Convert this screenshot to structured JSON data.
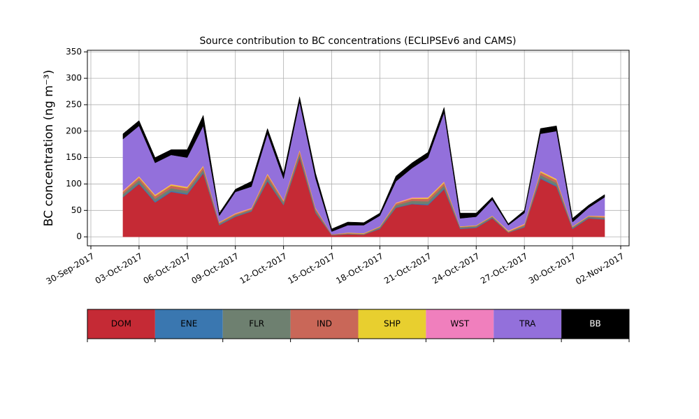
{
  "chart_data": {
    "type": "stacked_area",
    "title": "Source contribution to BC concentrations (ECLIPSEv6 and CAMS)",
    "y_label": "BC concentration (ng m⁻³)",
    "x": [
      "2017-10-02",
      "2017-10-03",
      "2017-10-04",
      "2017-10-05",
      "2017-10-06",
      "2017-10-07",
      "2017-10-08",
      "2017-10-09",
      "2017-10-10",
      "2017-10-11",
      "2017-10-12",
      "2017-10-13",
      "2017-10-14",
      "2017-10-15",
      "2017-10-16",
      "2017-10-17",
      "2017-10-18",
      "2017-10-19",
      "2017-10-20",
      "2017-10-21",
      "2017-10-22",
      "2017-10-23",
      "2017-10-24",
      "2017-10-25",
      "2017-10-26",
      "2017-10-27",
      "2017-10-28",
      "2017-10-29",
      "2017-10-30",
      "2017-10-31",
      "2017-11-01"
    ],
    "series": [
      {
        "name": "DOM",
        "color": "#c52a35",
        "values": [
          75,
          100,
          65,
          85,
          80,
          120,
          22,
          38,
          48,
          105,
          60,
          150,
          45,
          3,
          5,
          4,
          15,
          55,
          62,
          60,
          90,
          15,
          17,
          35,
          8,
          18,
          110,
          95,
          15,
          35,
          33
        ]
      },
      {
        "name": "ENE",
        "color": "#3a77b0",
        "values": [
          1,
          2,
          2,
          2,
          2,
          2,
          1,
          1,
          1,
          2,
          1,
          2,
          1,
          0,
          0,
          0,
          1,
          1,
          1,
          2,
          2,
          1,
          1,
          1,
          0,
          1,
          2,
          2,
          1,
          1,
          1
        ]
      },
      {
        "name": "FLR",
        "color": "#6e8070",
        "values": [
          5,
          5,
          5,
          5,
          5,
          5,
          2,
          2,
          2,
          5,
          4,
          5,
          4,
          1,
          1,
          1,
          2,
          4,
          5,
          5,
          5,
          2,
          2,
          2,
          1,
          2,
          5,
          5,
          2,
          2,
          2
        ]
      },
      {
        "name": "IND",
        "color": "#c96758",
        "values": [
          4,
          5,
          5,
          5,
          5,
          5,
          2,
          2,
          2,
          5,
          3,
          5,
          3,
          1,
          1,
          1,
          1,
          3,
          4,
          5,
          5,
          1,
          1,
          1,
          1,
          2,
          5,
          5,
          1,
          1,
          2
        ]
      },
      {
        "name": "SHP",
        "color": "#e8cf2f",
        "values": [
          1,
          2,
          2,
          2,
          2,
          2,
          1,
          1,
          1,
          2,
          1,
          2,
          1,
          0,
          1,
          1,
          1,
          1,
          1,
          2,
          2,
          1,
          1,
          1,
          1,
          1,
          2,
          2,
          1,
          1,
          1
        ]
      },
      {
        "name": "WST",
        "color": "#f07fbd",
        "values": [
          2,
          1,
          1,
          1,
          1,
          1,
          0,
          1,
          1,
          1,
          1,
          1,
          1,
          0,
          0,
          0,
          0,
          1,
          2,
          1,
          1,
          0,
          0,
          0,
          1,
          1,
          1,
          1,
          0,
          0,
          1
        ]
      },
      {
        "name": "TRA",
        "color": "#9370db",
        "values": [
          97,
          95,
          60,
          55,
          55,
          75,
          12,
          40,
          40,
          75,
          40,
          90,
          55,
          5,
          14,
          15,
          20,
          40,
          55,
          75,
          130,
          15,
          16,
          30,
          10,
          20,
          70,
          90,
          8,
          15,
          35
        ]
      },
      {
        "name": "BB",
        "color": "#000000",
        "values": [
          10,
          10,
          10,
          10,
          15,
          20,
          5,
          5,
          10,
          10,
          10,
          10,
          10,
          5,
          6,
          5,
          5,
          10,
          10,
          10,
          10,
          10,
          7,
          5,
          3,
          5,
          10,
          10,
          7,
          5,
          5
        ]
      }
    ],
    "xlim": [
      "2017-09-30",
      "2017-11-02"
    ],
    "xticks": [
      {
        "value": "2017-09-30",
        "label": "30-Sep-2017"
      },
      {
        "value": "2017-10-03",
        "label": "03-Oct-2017"
      },
      {
        "value": "2017-10-06",
        "label": "06-Oct-2017"
      },
      {
        "value": "2017-10-09",
        "label": "09-Oct-2017"
      },
      {
        "value": "2017-10-12",
        "label": "12-Oct-2017"
      },
      {
        "value": "2017-10-15",
        "label": "15-Oct-2017"
      },
      {
        "value": "2017-10-18",
        "label": "18-Oct-2017"
      },
      {
        "value": "2017-10-21",
        "label": "21-Oct-2017"
      },
      {
        "value": "2017-10-24",
        "label": "24-Oct-2017"
      },
      {
        "value": "2017-10-27",
        "label": "27-Oct-2017"
      },
      {
        "value": "2017-10-30",
        "label": "30-Oct-2017"
      },
      {
        "value": "2017-11-02",
        "label": "02-Nov-2017"
      }
    ],
    "ylim": [
      -17,
      353
    ],
    "yticks": [
      0,
      50,
      100,
      150,
      200,
      250,
      300,
      350
    ],
    "grid": true
  }
}
